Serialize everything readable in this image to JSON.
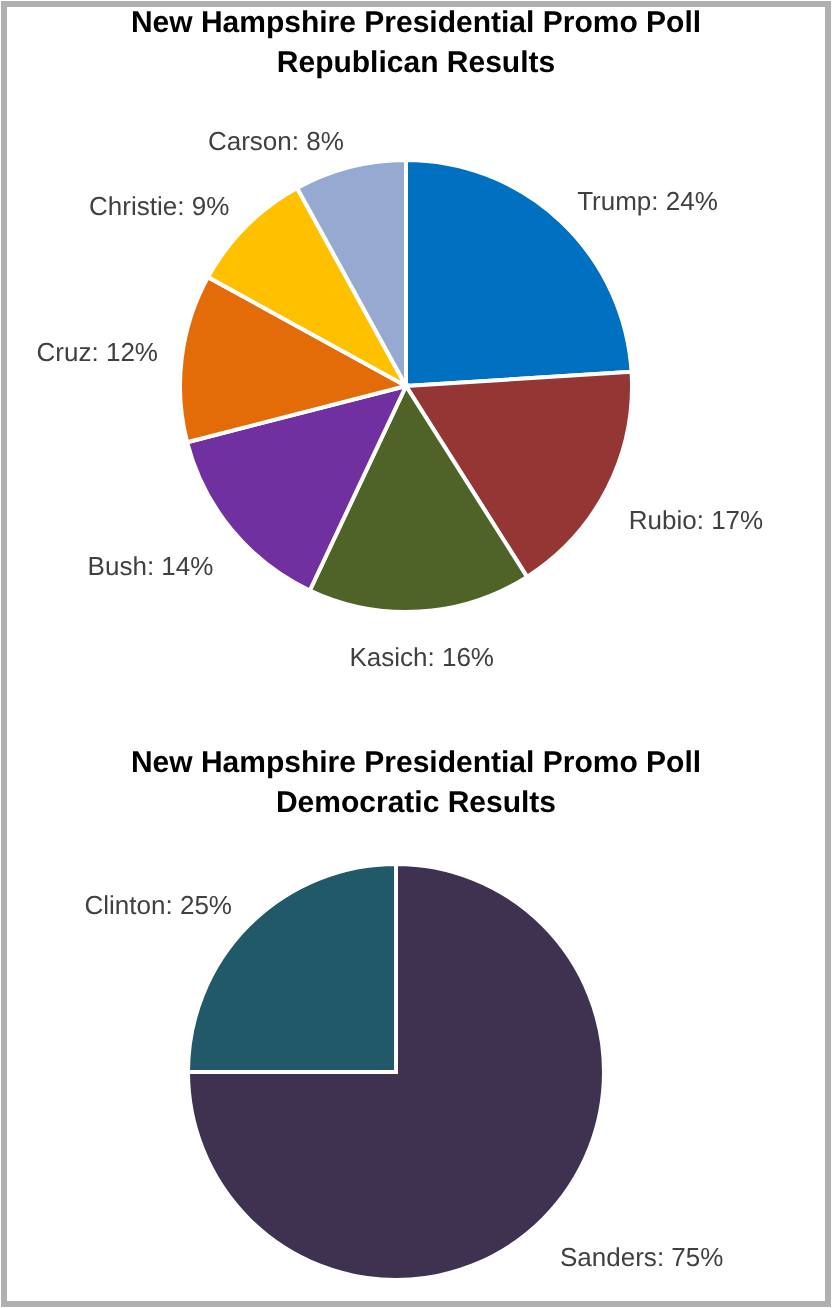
{
  "chart_data": [
    {
      "type": "pie",
      "title": "New Hampshire Presidential Promo Poll\nRepublican Results",
      "categories": [
        "Trump",
        "Rubio",
        "Kasich",
        "Bush",
        "Cruz",
        "Christie",
        "Carson"
      ],
      "values": [
        24,
        17,
        16,
        14,
        12,
        9,
        8
      ],
      "value_labels": [
        ": 24%",
        ": 17%",
        ": 16%",
        ": 14%",
        ": 12%",
        ": 9%",
        ": 8%"
      ],
      "colors": [
        "#0070c0",
        "#943634",
        "#4f6228",
        "#7030a0",
        "#e36c09",
        "#ffc000",
        "#95a9d1"
      ]
    },
    {
      "type": "pie",
      "title": "New Hampshire Presidential Promo Poll\nDemocratic Results",
      "categories": [
        "Sanders",
        "Clinton"
      ],
      "values": [
        75,
        25
      ],
      "value_labels": [
        ": 75%",
        ": 25%"
      ],
      "colors": [
        "#3f3150",
        "#215968"
      ]
    }
  ]
}
